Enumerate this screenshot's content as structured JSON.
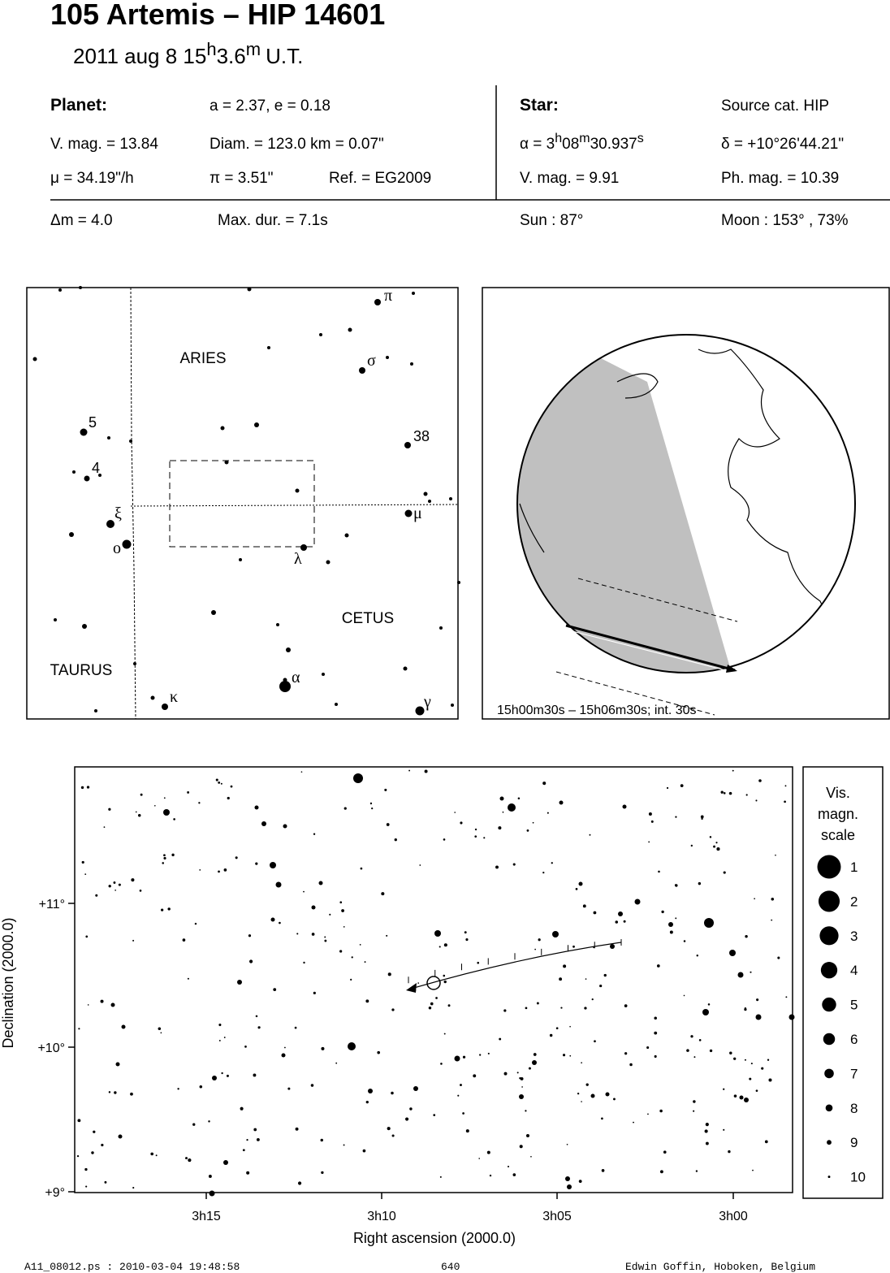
{
  "header": {
    "title": "105 Artemis  –  HIP 14601",
    "date": "2011 aug  8  15",
    "hour_unit": "h",
    "minutes": "3.6",
    "minute_unit": "m",
    "timescale": "U.T."
  },
  "planet": {
    "label": "Planet:",
    "orbit": "a = 2.37, e = 0.18",
    "vmag": "V. mag. = 13.84",
    "diam": "Diam. = 123.0 km = 0.07\"",
    "motion": "μ =  34.19\"/h",
    "parallax": "π =  3.51\"",
    "ref": "Ref. = EG2009",
    "dm": "Δm = 4.0",
    "maxdur": "Max. dur. = 7.1s"
  },
  "star": {
    "label": "Star:",
    "source": "Source cat.  HIP",
    "ra_h": "α =  3",
    "ra_h_unit": "h",
    "ra_m": "08",
    "ra_m_unit": "m",
    "ra_s": "30.937",
    "ra_s_unit": "s",
    "dec": "δ = +10°26'44.21\"",
    "vmag": "V. mag. =  9.91",
    "phmag": "Ph. mag. = 10.39",
    "sun": "Sun :  87°",
    "moon": "Moon : 153° , 73%"
  },
  "finder": {
    "constellations": [
      "ARIES",
      "CETUS",
      "TAURUS"
    ],
    "stars": [
      "π",
      "σ",
      "38",
      "μ",
      "ξ",
      "ο",
      "λ",
      "α",
      "κ",
      "γ",
      "5",
      "4"
    ]
  },
  "globe": {
    "caption": "15h00m30s – 15h06m30s; int. 30s"
  },
  "starchart": {
    "xticks": [
      "3h15",
      "3h10",
      "3h05",
      "3h00"
    ],
    "yticks": [
      "+11°",
      "+10°",
      "+9°"
    ],
    "xlabel": "Right ascension (2000.0)",
    "ylabel": "Declination (2000.0)"
  },
  "scale": {
    "title": [
      "Vis.",
      "magn.",
      "scale"
    ],
    "magnitudes": [
      1,
      2,
      3,
      4,
      5,
      6,
      7,
      8,
      9,
      10
    ]
  },
  "footer": {
    "file": "A11_08012.ps : 2010-03-04 19:48:58",
    "page": "640",
    "author": "Edwin Goffin, Hoboken, Belgium"
  }
}
